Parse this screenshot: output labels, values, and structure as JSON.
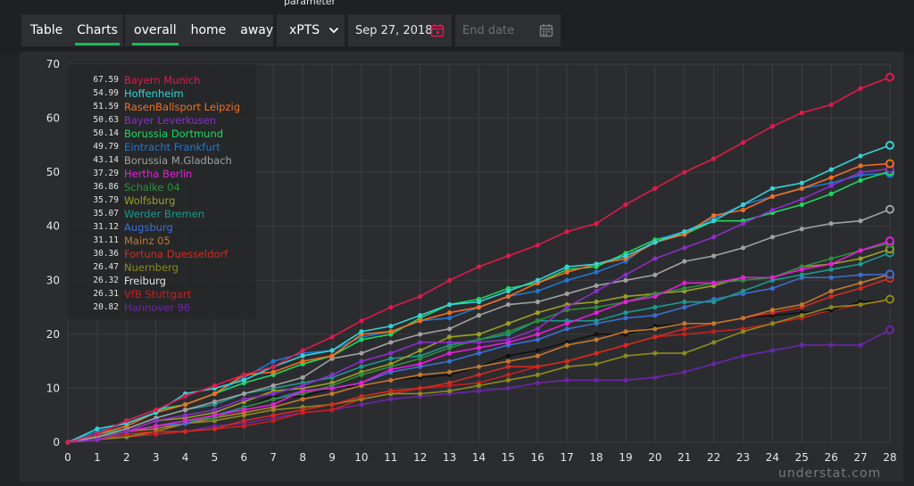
{
  "controls": {
    "view_tabs": [
      "Table",
      "Charts"
    ],
    "venue_tabs": [
      "overall",
      "home",
      "away"
    ],
    "parameter_label": "parameter",
    "parameter_value": "xPTS",
    "start_date": "Sep 27, 2018",
    "end_date_placeholder": "End date",
    "icons": {
      "dropdown": "chevron-down-icon",
      "calendar": "calendar-icon"
    }
  },
  "watermark": "understat.com",
  "chart_data": {
    "type": "line",
    "x": [
      0,
      1,
      2,
      3,
      4,
      5,
      6,
      7,
      8,
      9,
      10,
      11,
      12,
      13,
      14,
      15,
      16,
      17,
      18,
      19,
      20,
      21,
      22,
      23,
      24,
      25,
      26,
      27,
      28
    ],
    "ylim": [
      0,
      70
    ],
    "yticks": [
      0,
      10,
      20,
      30,
      40,
      50,
      60,
      70
    ],
    "grid": true,
    "legend_position": "top-left",
    "series": [
      {
        "name": "Bayern Munich",
        "final": "67.59",
        "color": "#e0194e",
        "values": [
          0,
          1.5,
          4,
          6,
          8.5,
          10.5,
          12.5,
          14,
          17,
          19.5,
          22.5,
          25,
          27,
          30,
          32.5,
          34.5,
          36.5,
          39,
          40.5,
          44,
          47,
          50,
          52.5,
          55.5,
          58.5,
          61,
          62.5,
          65.5,
          67.59
        ]
      },
      {
        "name": "Hoffenheim",
        "final": "54.99",
        "color": "#35d3d6",
        "values": [
          0,
          2.5,
          3.5,
          5.5,
          9,
          10,
          11.5,
          14,
          16,
          17,
          20.5,
          21.5,
          23.5,
          25.5,
          26,
          28,
          30,
          32.5,
          33,
          34.5,
          37,
          39,
          41,
          44,
          47,
          48,
          50.5,
          53,
          54.99
        ]
      },
      {
        "name": "RasenBallsport Leipzig",
        "final": "51.59",
        "color": "#f26f1f",
        "values": [
          0,
          1.5,
          3,
          5.5,
          7,
          9,
          12.5,
          13,
          15,
          16,
          20,
          20.5,
          22.5,
          24,
          25,
          27,
          29.5,
          31.5,
          33,
          34,
          37,
          38.5,
          42,
          43,
          45.5,
          47,
          49,
          51.2,
          51.59
        ]
      },
      {
        "name": "Bayer Leverkusen",
        "final": "50.63",
        "color": "#8b2ec9",
        "values": [
          0,
          0.5,
          2,
          4,
          5,
          6,
          8,
          9,
          10.5,
          12.5,
          15,
          16.5,
          18.5,
          18.5,
          18.5,
          19,
          21,
          25,
          28,
          31,
          34,
          36,
          38,
          40.5,
          43,
          45,
          47.5,
          50,
          50.63
        ]
      },
      {
        "name": "Borussia Dortmund",
        "final": "50.14",
        "color": "#1ed760",
        "values": [
          0,
          1.5,
          4,
          6,
          7,
          9,
          11,
          12.5,
          14.5,
          16,
          19,
          20,
          23,
          25.5,
          26.5,
          28.5,
          29.5,
          32,
          32.5,
          35,
          37.5,
          38.5,
          41,
          41,
          42.5,
          44,
          46,
          48.5,
          50.14
        ]
      },
      {
        "name": "Eintracht Frankfurt",
        "final": "49.79",
        "color": "#1f78d1",
        "values": [
          0,
          2,
          3.5,
          5.5,
          7,
          9,
          12,
          15,
          16.5,
          17,
          19.5,
          20.5,
          22.5,
          23,
          25,
          27,
          28,
          30,
          31.5,
          33.5,
          37.5,
          39,
          41.5,
          44,
          45.5,
          47,
          48,
          49.5,
          49.79
        ]
      },
      {
        "name": "Borussia M.Gladbach",
        "final": "43.14",
        "color": "#a0a0a0",
        "values": [
          0,
          1,
          2.5,
          4.5,
          6,
          7.5,
          9,
          10.5,
          12,
          15.5,
          16.5,
          18.5,
          20,
          21,
          23.5,
          25.5,
          26,
          27.5,
          29,
          30,
          31,
          33.5,
          34.5,
          36,
          38,
          39.5,
          40.5,
          41,
          43.14
        ]
      },
      {
        "name": "Hertha Berlin",
        "final": "37.29",
        "color": "#e61edb",
        "values": [
          0,
          0.5,
          2,
          3,
          4,
          5,
          6,
          7,
          9.5,
          10,
          11,
          13.5,
          14.5,
          16.5,
          17.5,
          18.5,
          20,
          22,
          24,
          26,
          27,
          29.5,
          29.5,
          30.5,
          30.5,
          32,
          33,
          35.5,
          37.29
        ]
      },
      {
        "name": "Schalke 04",
        "final": "36.86",
        "color": "#2a8f3a",
        "values": [
          0,
          1,
          2,
          3,
          4,
          4.5,
          6.5,
          8,
          9,
          10.5,
          12.5,
          14,
          15.5,
          17.5,
          19,
          20.5,
          22.5,
          24.5,
          25,
          26,
          27.5,
          28.5,
          29.5,
          30,
          30.5,
          32.5,
          34,
          35.5,
          36.86
        ]
      },
      {
        "name": "Wolfsburg",
        "final": "35.79",
        "color": "#9aa024",
        "values": [
          0,
          1,
          2,
          4,
          4.5,
          5.5,
          7.5,
          9.5,
          10,
          11,
          13,
          14.5,
          17,
          19.5,
          20,
          22,
          24,
          25.5,
          26,
          27,
          27.5,
          28,
          29,
          30.5,
          30.5,
          32.5,
          33,
          34,
          35.79
        ]
      },
      {
        "name": "Werder Bremen",
        "final": "35.07",
        "color": "#1a9a8f",
        "values": [
          0,
          1.5,
          2.5,
          4.5,
          6,
          7,
          9,
          10,
          11,
          12,
          14,
          15.5,
          16,
          18,
          19,
          20,
          22.5,
          22.5,
          22.5,
          24,
          25,
          26,
          26,
          28,
          30,
          31,
          32,
          33,
          35.07
        ]
      },
      {
        "name": "Augsburg",
        "final": "31.12",
        "color": "#3a6fd1",
        "values": [
          0,
          1,
          2,
          3,
          3.5,
          5,
          6.5,
          8,
          9.5,
          10,
          11,
          13,
          14,
          15,
          16.5,
          18,
          19,
          21,
          22,
          23,
          23.5,
          25,
          26.5,
          27.5,
          28.5,
          30.5,
          30.5,
          31,
          31.12
        ]
      },
      {
        "name": "Mainz 05",
        "final": "31.11",
        "color": "#c0782f",
        "values": [
          0,
          1,
          2,
          2.5,
          3.5,
          4.5,
          5.5,
          6.5,
          8,
          9,
          10.5,
          11.5,
          12.5,
          13,
          14,
          15,
          16,
          18,
          19,
          20.5,
          21,
          22,
          22,
          23,
          24.5,
          25.5,
          28,
          29.5,
          31.11
        ]
      },
      {
        "name": "Fortuna Duesseldorf",
        "final": "30.36",
        "color": "#d42a1f",
        "values": [
          0,
          0.5,
          1.5,
          2,
          2,
          2.5,
          4,
          5,
          6,
          7,
          8.5,
          9.5,
          10,
          11,
          12.5,
          14,
          14,
          15,
          16.5,
          18,
          19.5,
          21,
          22,
          23,
          24,
          25,
          27,
          28.5,
          30.36
        ]
      },
      {
        "name": "Nuernberg",
        "final": "26.47",
        "color": "#8a8a1f",
        "values": [
          0,
          0.5,
          1,
          2,
          3.5,
          4,
          5,
          6,
          6.5,
          7,
          8,
          9,
          9,
          9.5,
          10.5,
          11.5,
          12.5,
          14,
          14.5,
          16,
          16.5,
          16.5,
          18.5,
          20.5,
          22,
          23.5,
          25,
          25.5,
          26.47
        ]
      },
      {
        "name": "Freiburg",
        "final": "26.32",
        "color": "#111111",
        "values": [
          0,
          1,
          2,
          3,
          4,
          5,
          6.5,
          8.5,
          8.5,
          10,
          10.5,
          11.5,
          12,
          12.5,
          14,
          16,
          17,
          18.5,
          20,
          20,
          21.5,
          22,
          22,
          23,
          23.5,
          24,
          24.5,
          26,
          26.32
        ]
      },
      {
        "name": "VfB Stuttgart",
        "final": "26.31",
        "color": "#c81e1e",
        "values": [
          0,
          0.5,
          1,
          1.5,
          2,
          2.5,
          3,
          4,
          5.5,
          6,
          8,
          9,
          10,
          10.5,
          11,
          12.5,
          14,
          15,
          16.5,
          18,
          19.5,
          20,
          20.5,
          21,
          22,
          23,
          24.5,
          25.5,
          26.31
        ]
      },
      {
        "name": "Hannover 96",
        "final": "20.82",
        "color": "#6a26a8",
        "values": [
          0,
          0.5,
          1,
          1.5,
          2,
          3,
          3.5,
          4.5,
          5.5,
          6,
          7,
          8,
          8.5,
          9,
          9.5,
          10,
          11,
          11.5,
          11.5,
          11.5,
          12,
          13,
          14.5,
          16,
          17,
          18,
          18,
          18,
          20.82
        ]
      }
    ]
  }
}
